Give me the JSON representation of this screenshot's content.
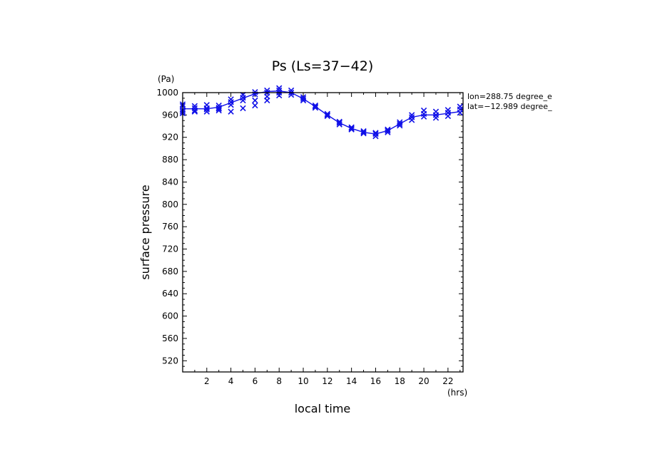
{
  "chart_data": {
    "type": "scatter",
    "title": "Ps (Ls=37−42)",
    "xlabel": "local time",
    "ylabel": "surface pressure",
    "x_unit": "(hrs)",
    "y_unit": "(Pa)",
    "xlim": [
      0,
      23.25
    ],
    "ylim": [
      500,
      1000
    ],
    "x_ticks": [
      2,
      4,
      6,
      8,
      10,
      12,
      14,
      16,
      18,
      20,
      22
    ],
    "y_ticks": [
      1000,
      960,
      920,
      880,
      840,
      800,
      760,
      720,
      680,
      640,
      600,
      560,
      520
    ],
    "annotations": [
      "lon=288.75 degree_e",
      "lat=−12.989 degree_"
    ],
    "color": "#1010e8",
    "series": [
      {
        "type": "line",
        "x": [
          0,
          1,
          2,
          3,
          4,
          5,
          6,
          7,
          8,
          9,
          10,
          11,
          12,
          13,
          14,
          15,
          16,
          17,
          18,
          19,
          20,
          21,
          22,
          23
        ],
        "y": [
          971,
          971,
          971,
          974,
          982,
          990,
          998,
          1002,
          1003,
          1000,
          989,
          975,
          960,
          946,
          936,
          929,
          926,
          932,
          944,
          956,
          960,
          960,
          963,
          966
        ]
      },
      {
        "type": "scatter",
        "marker": "x",
        "points": [
          [
            0,
            976
          ],
          [
            0,
            969
          ],
          [
            0,
            963
          ],
          [
            0,
            979
          ],
          [
            0,
            966
          ],
          [
            1,
            976
          ],
          [
            1,
            972
          ],
          [
            1,
            966
          ],
          [
            1,
            968
          ],
          [
            2,
            978
          ],
          [
            2,
            972
          ],
          [
            2,
            966
          ],
          [
            2,
            970
          ],
          [
            3,
            977
          ],
          [
            3,
            973
          ],
          [
            3,
            968
          ],
          [
            3,
            971
          ],
          [
            4,
            988
          ],
          [
            4,
            983
          ],
          [
            4,
            978
          ],
          [
            4,
            966
          ],
          [
            5,
            996
          ],
          [
            5,
            991
          ],
          [
            5,
            986
          ],
          [
            5,
            972
          ],
          [
            6,
            1001
          ],
          [
            6,
            997
          ],
          [
            6,
            986
          ],
          [
            6,
            977
          ],
          [
            7,
            1004
          ],
          [
            7,
            1000
          ],
          [
            7,
            993
          ],
          [
            7,
            986
          ],
          [
            8,
            1008
          ],
          [
            8,
            1004
          ],
          [
            8,
            1000
          ],
          [
            8,
            995
          ],
          [
            9,
            1004
          ],
          [
            9,
            1000
          ],
          [
            9,
            996
          ],
          [
            10,
            992
          ],
          [
            10,
            989
          ],
          [
            10,
            986
          ],
          [
            11,
            977
          ],
          [
            11,
            975
          ],
          [
            11,
            973
          ],
          [
            12,
            962
          ],
          [
            12,
            960
          ],
          [
            12,
            958
          ],
          [
            13,
            948
          ],
          [
            13,
            946
          ],
          [
            13,
            943
          ],
          [
            14,
            938
          ],
          [
            14,
            936
          ],
          [
            14,
            934
          ],
          [
            15,
            931
          ],
          [
            15,
            929
          ],
          [
            15,
            927
          ],
          [
            16,
            928
          ],
          [
            16,
            926
          ],
          [
            16,
            922
          ],
          [
            17,
            934
          ],
          [
            17,
            932
          ],
          [
            17,
            929
          ],
          [
            18,
            947
          ],
          [
            18,
            944
          ],
          [
            18,
            941
          ],
          [
            19,
            960
          ],
          [
            19,
            956
          ],
          [
            19,
            951
          ],
          [
            20,
            968
          ],
          [
            20,
            962
          ],
          [
            20,
            957
          ],
          [
            21,
            966
          ],
          [
            21,
            960
          ],
          [
            21,
            955
          ],
          [
            22,
            969
          ],
          [
            22,
            964
          ],
          [
            22,
            958
          ],
          [
            23,
            975
          ],
          [
            23,
            970
          ],
          [
            23,
            964
          ]
        ]
      }
    ]
  }
}
